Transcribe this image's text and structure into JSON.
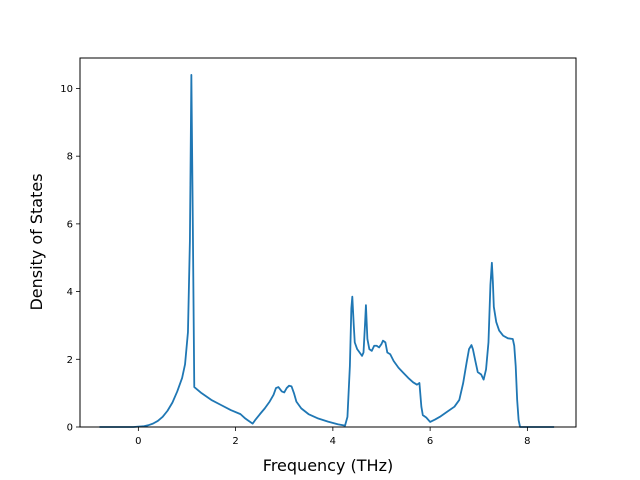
{
  "chart_data": {
    "type": "line",
    "title": "",
    "xlabel": "Frequency (THz)",
    "ylabel": "Density of States",
    "xlim": [
      -1.2,
      9.0
    ],
    "ylim": [
      0,
      10.9
    ],
    "xticks": [
      0,
      2,
      4,
      6,
      8
    ],
    "yticks": [
      0,
      2,
      4,
      6,
      8,
      10
    ],
    "grid": false,
    "legend": "none",
    "series": [
      {
        "color": "#1f77b4",
        "points": [
          [
            -0.8,
            0.0
          ],
          [
            -0.4,
            0.0
          ],
          [
            -0.1,
            0.0
          ],
          [
            0.0,
            0.01
          ],
          [
            0.1,
            0.02
          ],
          [
            0.2,
            0.05
          ],
          [
            0.3,
            0.1
          ],
          [
            0.4,
            0.18
          ],
          [
            0.5,
            0.3
          ],
          [
            0.6,
            0.48
          ],
          [
            0.7,
            0.72
          ],
          [
            0.8,
            1.05
          ],
          [
            0.9,
            1.45
          ],
          [
            0.96,
            1.85
          ],
          [
            1.02,
            2.8
          ],
          [
            1.06,
            5.5
          ],
          [
            1.09,
            10.4
          ],
          [
            1.12,
            6.0
          ],
          [
            1.15,
            1.18
          ],
          [
            1.3,
            1.0
          ],
          [
            1.5,
            0.8
          ],
          [
            1.7,
            0.65
          ],
          [
            1.9,
            0.5
          ],
          [
            2.1,
            0.38
          ],
          [
            2.2,
            0.25
          ],
          [
            2.25,
            0.2
          ],
          [
            2.35,
            0.1
          ],
          [
            2.4,
            0.2
          ],
          [
            2.5,
            0.38
          ],
          [
            2.6,
            0.55
          ],
          [
            2.7,
            0.75
          ],
          [
            2.78,
            0.95
          ],
          [
            2.83,
            1.15
          ],
          [
            2.88,
            1.18
          ],
          [
            2.95,
            1.05
          ],
          [
            3.0,
            1.02
          ],
          [
            3.05,
            1.15
          ],
          [
            3.1,
            1.22
          ],
          [
            3.15,
            1.2
          ],
          [
            3.2,
            1.0
          ],
          [
            3.25,
            0.75
          ],
          [
            3.35,
            0.55
          ],
          [
            3.5,
            0.38
          ],
          [
            3.7,
            0.25
          ],
          [
            3.9,
            0.16
          ],
          [
            4.1,
            0.08
          ],
          [
            4.25,
            0.04
          ],
          [
            4.3,
            0.3
          ],
          [
            4.35,
            1.8
          ],
          [
            4.38,
            3.5
          ],
          [
            4.4,
            3.85
          ],
          [
            4.43,
            3.0
          ],
          [
            4.45,
            2.5
          ],
          [
            4.5,
            2.3
          ],
          [
            4.55,
            2.2
          ],
          [
            4.6,
            2.1
          ],
          [
            4.63,
            2.2
          ],
          [
            4.66,
            3.0
          ],
          [
            4.68,
            3.6
          ],
          [
            4.71,
            2.6
          ],
          [
            4.75,
            2.3
          ],
          [
            4.8,
            2.25
          ],
          [
            4.85,
            2.4
          ],
          [
            4.9,
            2.4
          ],
          [
            4.95,
            2.35
          ],
          [
            5.0,
            2.45
          ],
          [
            5.03,
            2.55
          ],
          [
            5.08,
            2.5
          ],
          [
            5.12,
            2.2
          ],
          [
            5.18,
            2.15
          ],
          [
            5.25,
            1.95
          ],
          [
            5.35,
            1.75
          ],
          [
            5.45,
            1.6
          ],
          [
            5.55,
            1.45
          ],
          [
            5.65,
            1.32
          ],
          [
            5.73,
            1.25
          ],
          [
            5.78,
            1.3
          ],
          [
            5.82,
            0.6
          ],
          [
            5.85,
            0.35
          ],
          [
            5.92,
            0.28
          ],
          [
            6.0,
            0.15
          ],
          [
            6.1,
            0.22
          ],
          [
            6.2,
            0.3
          ],
          [
            6.35,
            0.45
          ],
          [
            6.5,
            0.6
          ],
          [
            6.6,
            0.8
          ],
          [
            6.68,
            1.3
          ],
          [
            6.75,
            1.9
          ],
          [
            6.8,
            2.3
          ],
          [
            6.85,
            2.42
          ],
          [
            6.88,
            2.3
          ],
          [
            6.93,
            1.95
          ],
          [
            6.98,
            1.62
          ],
          [
            7.05,
            1.55
          ],
          [
            7.1,
            1.4
          ],
          [
            7.15,
            1.7
          ],
          [
            7.2,
            2.5
          ],
          [
            7.24,
            4.2
          ],
          [
            7.27,
            4.85
          ],
          [
            7.29,
            4.3
          ],
          [
            7.31,
            3.55
          ],
          [
            7.36,
            3.1
          ],
          [
            7.42,
            2.85
          ],
          [
            7.5,
            2.7
          ],
          [
            7.6,
            2.62
          ],
          [
            7.7,
            2.6
          ],
          [
            7.73,
            2.4
          ],
          [
            7.76,
            1.8
          ],
          [
            7.79,
            0.8
          ],
          [
            7.82,
            0.2
          ],
          [
            7.85,
            0.0
          ],
          [
            8.2,
            0.0
          ],
          [
            8.55,
            0.0
          ]
        ]
      }
    ]
  }
}
